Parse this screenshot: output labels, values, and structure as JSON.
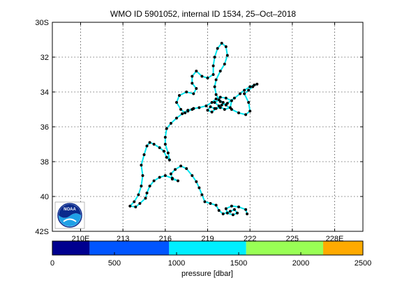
{
  "chart_data": {
    "type": "scatter",
    "title": "WMO ID 5901052, internal ID 1534, 25–Oct–2018",
    "xlabel": "",
    "ylabel": "",
    "xlim": [
      208,
      230
    ],
    "ylim": [
      30,
      42
    ],
    "y_reversed": true,
    "grid": true,
    "x_ticks": [
      210,
      213,
      216,
      219,
      222,
      225,
      228
    ],
    "x_tick_labels": [
      "210E",
      "213",
      "216",
      "219",
      "222",
      "225",
      "228E"
    ],
    "y_ticks": [
      30,
      32,
      34,
      36,
      38,
      40,
      42
    ],
    "y_tick_labels": [
      "30S",
      "32",
      "34",
      "36",
      "38",
      "40",
      "42S"
    ],
    "track_color": "#00e5ee",
    "series": [
      {
        "points": [
          [
            221.8,
            41.0
          ],
          [
            221.7,
            40.75
          ],
          [
            221.2,
            40.6
          ],
          [
            220.7,
            40.55
          ],
          [
            220.3,
            40.7
          ],
          [
            220.4,
            40.95
          ],
          [
            220.8,
            41.05
          ],
          [
            221.1,
            40.95
          ],
          [
            220.9,
            40.75
          ],
          [
            220.6,
            40.85
          ],
          [
            220.1,
            41.0
          ],
          [
            219.8,
            40.8
          ],
          [
            219.6,
            40.5
          ],
          [
            219.2,
            40.4
          ],
          [
            218.8,
            40.3
          ],
          [
            218.6,
            39.9
          ],
          [
            218.4,
            39.5
          ],
          [
            218.2,
            39.15
          ],
          [
            217.9,
            38.8
          ],
          [
            217.5,
            38.4
          ],
          [
            217.1,
            38.25
          ],
          [
            216.7,
            38.45
          ],
          [
            216.4,
            38.7
          ],
          [
            216.5,
            39.0
          ],
          [
            216.9,
            39.1
          ],
          [
            216.5,
            38.95
          ],
          [
            216.0,
            38.8
          ],
          [
            215.6,
            38.9
          ],
          [
            215.2,
            39.1
          ],
          [
            214.9,
            39.4
          ],
          [
            214.7,
            39.8
          ],
          [
            214.6,
            40.1
          ],
          [
            214.2,
            40.4
          ],
          [
            213.9,
            40.6
          ],
          [
            213.5,
            40.55
          ],
          [
            213.8,
            40.3
          ],
          [
            214.1,
            39.9
          ],
          [
            214.3,
            39.4
          ],
          [
            214.4,
            38.8
          ],
          [
            214.3,
            38.2
          ],
          [
            214.5,
            37.6
          ],
          [
            214.7,
            37.1
          ],
          [
            214.9,
            36.9
          ],
          [
            215.2,
            37.0
          ],
          [
            215.6,
            37.2
          ],
          [
            215.9,
            37.4
          ],
          [
            216.1,
            37.75
          ],
          [
            216.3,
            37.9
          ],
          [
            216.2,
            37.5
          ],
          [
            216.0,
            37.0
          ],
          [
            216.0,
            36.6
          ],
          [
            216.1,
            36.1
          ],
          [
            216.4,
            35.8
          ],
          [
            216.8,
            35.5
          ],
          [
            217.2,
            35.25
          ],
          [
            217.6,
            35.05
          ],
          [
            218.0,
            34.95
          ],
          [
            218.4,
            34.9
          ],
          [
            218.9,
            34.8
          ],
          [
            219.3,
            34.6
          ],
          [
            219.6,
            34.4
          ],
          [
            219.9,
            34.3
          ],
          [
            220.3,
            34.35
          ],
          [
            220.7,
            34.5
          ],
          [
            220.6,
            34.9
          ],
          [
            220.2,
            35.0
          ],
          [
            219.8,
            34.8
          ],
          [
            219.5,
            34.6
          ],
          [
            219.8,
            34.45
          ],
          [
            220.1,
            34.6
          ],
          [
            219.9,
            34.9
          ],
          [
            219.5,
            34.95
          ],
          [
            219.2,
            34.85
          ],
          [
            219.0,
            35.05
          ],
          [
            219.3,
            35.15
          ],
          [
            219.6,
            34.95
          ],
          [
            220.0,
            34.75
          ],
          [
            220.4,
            34.65
          ],
          [
            220.9,
            34.35
          ],
          [
            221.3,
            34.1
          ],
          [
            221.6,
            33.9
          ],
          [
            222.0,
            33.7
          ],
          [
            222.3,
            33.6
          ],
          [
            222.5,
            33.55
          ],
          [
            222.2,
            33.7
          ],
          [
            221.9,
            33.9
          ],
          [
            221.6,
            34.1
          ],
          [
            221.9,
            34.6
          ],
          [
            222.0,
            35.1
          ],
          [
            221.7,
            35.3
          ],
          [
            221.2,
            35.2
          ],
          [
            220.7,
            35.0
          ],
          [
            220.3,
            34.75
          ],
          [
            219.9,
            34.55
          ],
          [
            219.6,
            34.15
          ],
          [
            219.5,
            33.7
          ],
          [
            219.6,
            33.3
          ],
          [
            219.9,
            32.8
          ],
          [
            220.2,
            32.4
          ],
          [
            220.4,
            31.9
          ],
          [
            220.3,
            31.4
          ],
          [
            220.0,
            31.2
          ],
          [
            219.7,
            31.5
          ],
          [
            219.5,
            32.0
          ],
          [
            219.4,
            32.5
          ],
          [
            219.4,
            33.0
          ],
          [
            219.0,
            33.2
          ],
          [
            218.6,
            33.1
          ],
          [
            218.2,
            32.8
          ],
          [
            217.9,
            33.1
          ],
          [
            217.9,
            33.5
          ],
          [
            218.2,
            33.8
          ],
          [
            218.0,
            34.1
          ],
          [
            217.5,
            34.0
          ],
          [
            217.0,
            34.2
          ],
          [
            216.8,
            34.6
          ],
          [
            217.1,
            35.0
          ],
          [
            217.4,
            35.2
          ],
          [
            217.6,
            35.1
          ],
          [
            217.9,
            35.0
          ],
          [
            218.0,
            34.95
          ]
        ]
      }
    ]
  },
  "colorbar": {
    "label": "pressure [dbar]",
    "ticks": [
      "0",
      "500",
      "1000",
      "1500",
      "2000",
      "2500"
    ],
    "range": [
      0,
      2500
    ],
    "bands": [
      {
        "from": 0,
        "to": 300,
        "color": "#00008f"
      },
      {
        "from": 300,
        "to": 940,
        "color": "#0055ff"
      },
      {
        "from": 940,
        "to": 1560,
        "color": "#00eeff"
      },
      {
        "from": 1560,
        "to": 2180,
        "color": "#99ff55"
      },
      {
        "from": 2180,
        "to": 2500,
        "color": "#ffaa00"
      }
    ]
  },
  "logo": {
    "text": "NOAA"
  }
}
